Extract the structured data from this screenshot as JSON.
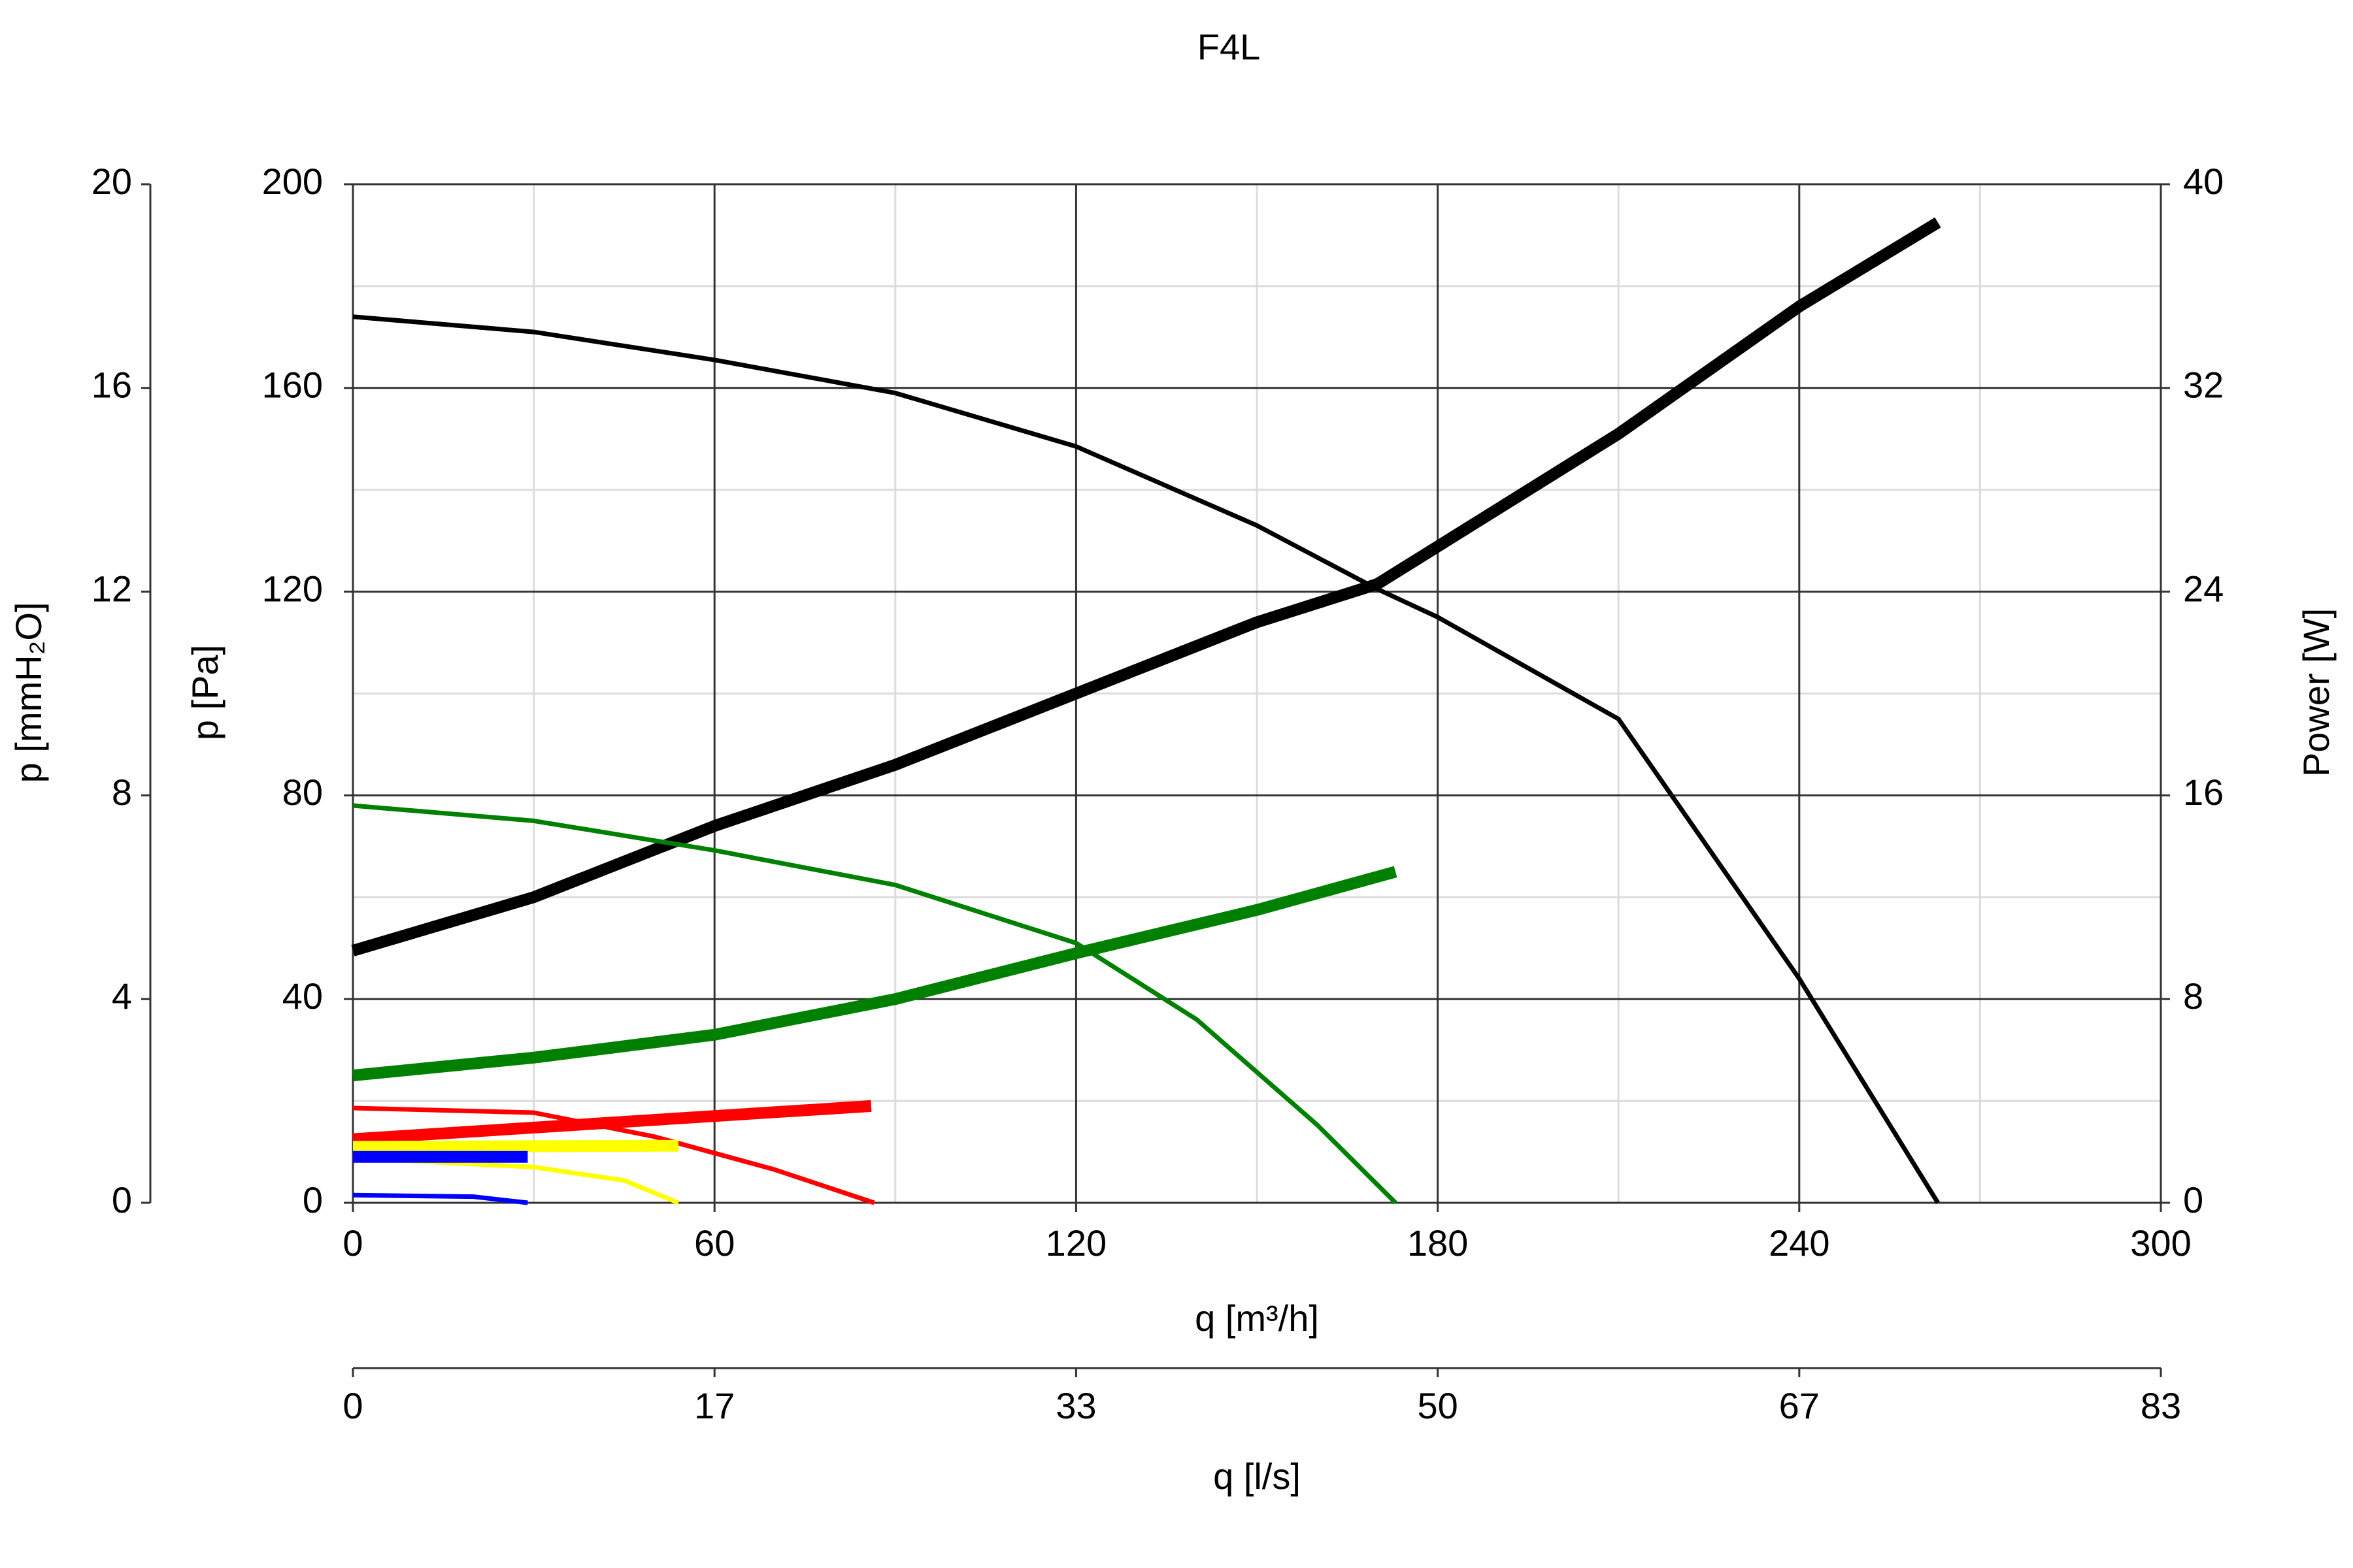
{
  "chart_data": {
    "type": "line",
    "title": "F4L",
    "xlabel": "q [m³/h]",
    "xlim": [
      0,
      300
    ],
    "xticks": [
      0,
      60,
      120,
      180,
      240,
      300
    ],
    "ylabel": "p [Pa]",
    "ylim": [
      0,
      200
    ],
    "yticks": [
      0,
      40,
      80,
      120,
      160,
      200
    ],
    "y2label": "Power [W]",
    "y2lim": [
      0,
      40
    ],
    "y2ticks": [
      0,
      8,
      16,
      24,
      32,
      40
    ],
    "y3label": "p [mmH₂O]",
    "y3lim": [
      0,
      20
    ],
    "y3ticks": [
      0,
      4,
      8,
      12,
      16,
      20
    ],
    "x2label": "q [l/s]",
    "x2lim": [
      0,
      83.333
    ],
    "x2ticks": [
      0,
      {
        "value": 16.667,
        "label": "17"
      },
      {
        "value": 33.333,
        "label": "33"
      },
      50,
      {
        "value": 66.667,
        "label": "67"
      },
      {
        "value": 83.333,
        "label": "83"
      }
    ],
    "grid": true,
    "minor_grid": true,
    "series": [
      {
        "color": "#000000",
        "x": [
          0,
          30,
          60,
          90,
          120,
          150,
          170,
          180,
          210,
          240,
          263
        ],
        "values": [
          174,
          171,
          165.5,
          159,
          148.5,
          133,
          120.5,
          115,
          95,
          44,
          0
        ]
      },
      {
        "color": "#000000",
        "axis": "y2",
        "x": [
          0,
          30,
          60,
          90,
          120,
          150,
          170,
          210,
          240,
          263
        ],
        "values": [
          9.9,
          12,
          14.8,
          17.2,
          20,
          22.8,
          24.3,
          30.2,
          35.2,
          38.5
        ]
      },
      {
        "color": "#008000",
        "x": [
          0,
          30,
          60,
          90,
          120,
          140,
          160,
          173
        ],
        "values": [
          78,
          75,
          69.2,
          62.4,
          51,
          36,
          15.3,
          0
        ]
      },
      {
        "color": "#008000",
        "axis": "y2",
        "x": [
          0,
          30,
          60,
          90,
          120,
          150,
          173
        ],
        "values": [
          5,
          5.7,
          6.6,
          8,
          9.8,
          11.5,
          13
        ]
      },
      {
        "color": "#ff0000",
        "x": [
          0,
          30,
          50,
          70,
          86.5
        ],
        "values": [
          18.6,
          17.7,
          13,
          6.5,
          0
        ]
      },
      {
        "color": "#ff0000",
        "axis": "y2",
        "x": [
          0,
          86
        ],
        "values": [
          2.5,
          3.8
        ]
      },
      {
        "color": "#ffff00",
        "x": [
          0,
          30,
          45,
          54
        ],
        "values": [
          8.8,
          7,
          4.4,
          0
        ]
      },
      {
        "color": "#ffff00",
        "axis": "y2",
        "x": [
          0,
          54
        ],
        "values": [
          2.2,
          2.24
        ]
      },
      {
        "color": "#0000ff",
        "x": [
          0,
          20,
          29
        ],
        "values": [
          1.5,
          1.2,
          0
        ]
      },
      {
        "color": "#0000ff",
        "axis": "y2",
        "x": [
          0,
          29
        ],
        "values": [
          1.8,
          1.8
        ]
      }
    ]
  }
}
